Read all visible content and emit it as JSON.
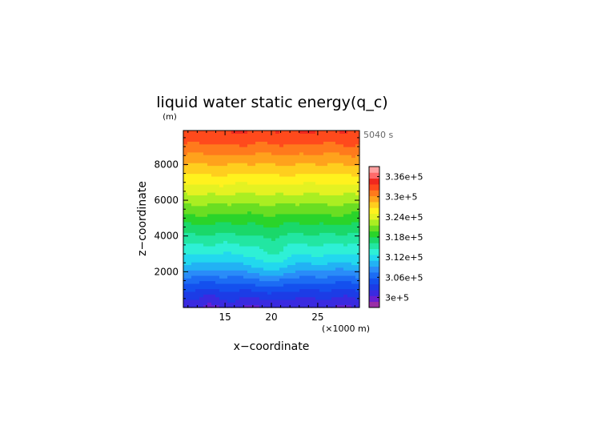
{
  "chart_data": {
    "type": "heatmap",
    "title": "liquid water static energy(q_c)",
    "y_unit": "(m)",
    "time_label": "5040 s",
    "xlabel": "x−coordinate",
    "ylabel": "z−coordinate",
    "x_unit": "(×1000 m)",
    "xlim": [
      10.5,
      29.5
    ],
    "ylim": [
      0,
      9900
    ],
    "x_ticks": [
      15,
      20,
      25
    ],
    "x_tick_labels": [
      "15",
      "20",
      "25"
    ],
    "y_ticks": [
      2000,
      4000,
      6000,
      8000
    ],
    "y_tick_labels": [
      "2000",
      "4000",
      "6000",
      "8000"
    ],
    "colorbar": {
      "min": 297000,
      "max": 339000,
      "step": 2000,
      "tick_values": [
        300000,
        306000,
        312000,
        318000,
        324000,
        330000,
        336000
      ],
      "tick_labels": [
        "3e+5",
        "3.06e+5",
        "3.12e+5",
        "3.18e+5",
        "3.24e+5",
        "3.3e+5",
        "3.36e+5"
      ],
      "colors": [
        "#9a2ea6",
        "#6a1fd0",
        "#3a2ae0",
        "#1c3ce6",
        "#1450ee",
        "#1c6cf4",
        "#2a8cf8",
        "#22b2f4",
        "#22d8ee",
        "#2ef0d6",
        "#22e6a2",
        "#1ad86a",
        "#2ad42a",
        "#6ade22",
        "#aaee22",
        "#e4f222",
        "#fff21e",
        "#ffce1e",
        "#ffa21c",
        "#ff7a1c",
        "#ff4a1c",
        "#f0281e",
        "#ff6a6a",
        "#ffa0a0"
      ]
    },
    "profile_z": [
      0,
      500,
      1000,
      1500,
      2000,
      2500,
      3000,
      3500,
      4000,
      4500,
      5000,
      5500,
      6000,
      6500,
      7000,
      7500,
      8000,
      8500,
      9000,
      9500,
      9900
    ],
    "profile_value": [
      301000,
      302800,
      305000,
      307500,
      310500,
      313000,
      315000,
      316800,
      318500,
      320300,
      322100,
      323900,
      325700,
      327500,
      329300,
      331100,
      332900,
      334700,
      336500,
      338200,
      339000
    ]
  }
}
